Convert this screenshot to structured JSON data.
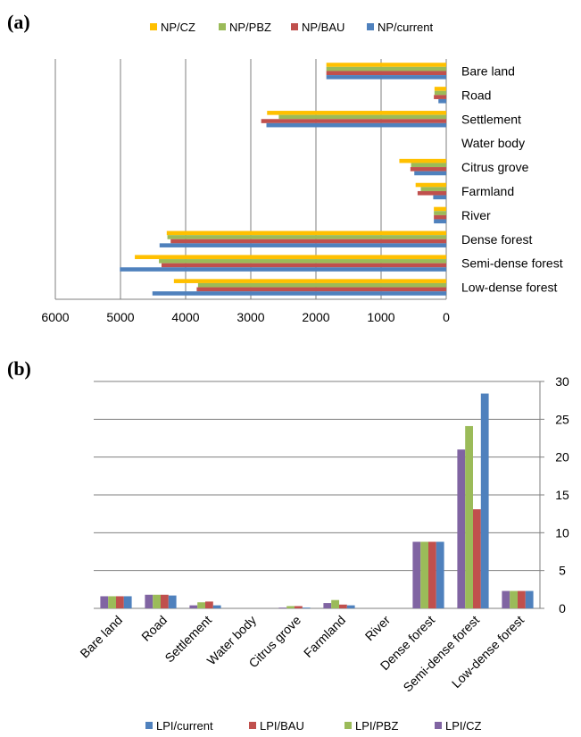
{
  "chart_data": [
    {
      "type": "bar",
      "orientation": "horizontal",
      "panel_label": "(a)",
      "categories": [
        "Bare land",
        "Road",
        "Settlement",
        "Water body",
        "Citrus grove",
        "Farmland",
        "River",
        "Dense forest",
        "Semi-dense forest",
        "Low-dense forest"
      ],
      "series": [
        {
          "name": "NP/CZ",
          "color": "#ffc000",
          "values": [
            1840,
            180,
            2750,
            0,
            720,
            470,
            190,
            4290,
            4780,
            4180
          ]
        },
        {
          "name": "NP/PBZ",
          "color": "#9bbb59",
          "values": [
            1840,
            180,
            2570,
            0,
            540,
            390,
            190,
            4280,
            4410,
            3810
          ]
        },
        {
          "name": "NP/BAU",
          "color": "#c0504d",
          "values": [
            1840,
            190,
            2840,
            0,
            550,
            440,
            190,
            4230,
            4370,
            3830
          ]
        },
        {
          "name": "NP/current",
          "color": "#4f81bd",
          "values": [
            1840,
            120,
            2760,
            0,
            490,
            200,
            190,
            4400,
            5010,
            4510
          ]
        }
      ],
      "legend_order": [
        "NP/CZ",
        "NP/PBZ",
        "NP/BAU",
        "NP/current"
      ],
      "xlim": [
        0,
        6000
      ],
      "ticks": [
        "6000",
        "5000",
        "4000",
        "3000",
        "2000",
        "1000",
        "0"
      ],
      "grid": true,
      "legend_position": "top",
      "x_reversed": true
    },
    {
      "type": "bar",
      "orientation": "vertical",
      "panel_label": "(b)",
      "categories": [
        "Bare land",
        "Road",
        "Settlement",
        "Water body",
        "Citrus grove",
        "Farmland",
        "River",
        "Dense forest",
        "Semi-dense forest",
        "Low-dense forest"
      ],
      "series": [
        {
          "name": "LPI/CZ",
          "color": "#8064a2",
          "values": [
            1.6,
            1.8,
            0.4,
            0,
            0.1,
            0.7,
            0,
            8.8,
            21.0,
            2.3
          ]
        },
        {
          "name": "LPI/PBZ",
          "color": "#9bbb59",
          "values": [
            1.6,
            1.8,
            0.8,
            0,
            0.3,
            1.1,
            0,
            8.8,
            24.1,
            2.3
          ]
        },
        {
          "name": "LPI/BAU",
          "color": "#c0504d",
          "values": [
            1.6,
            1.8,
            0.9,
            0,
            0.3,
            0.5,
            0,
            8.8,
            13.1,
            2.3
          ]
        },
        {
          "name": "LPI/current",
          "color": "#4f81bd",
          "values": [
            1.6,
            1.7,
            0.4,
            0,
            0.1,
            0.4,
            0,
            8.8,
            28.4,
            2.3
          ]
        }
      ],
      "legend_order": [
        "LPI/current",
        "LPI/BAU",
        "LPI/PBZ",
        "LPI/CZ"
      ],
      "ylim": [
        0,
        30
      ],
      "ticks": [
        "0",
        "5",
        "10",
        "15",
        "20",
        "25",
        "30"
      ],
      "grid": true,
      "legend_position": "bottom",
      "y_axis_side": "right"
    }
  ]
}
